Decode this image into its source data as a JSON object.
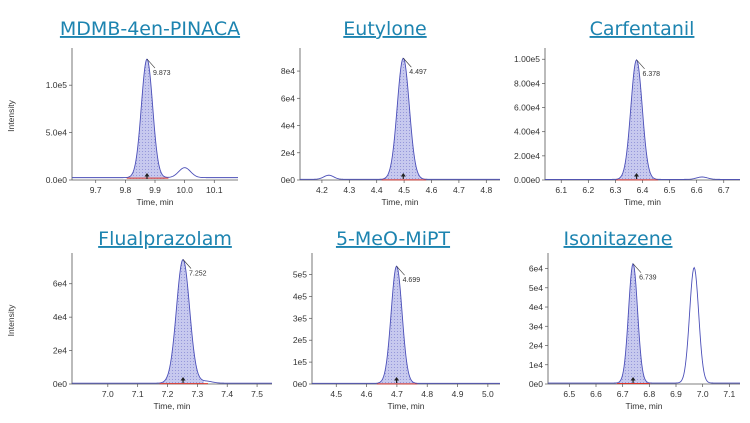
{
  "chart_data": [
    {
      "type": "line",
      "title": "MDMB-4en-PINACA",
      "xlabel": "Time, min",
      "ylabel": "Intensity",
      "xlim": [
        9.62,
        10.18
      ],
      "ylim": [
        0,
        135000
      ],
      "xticks": [
        "9.7",
        "9.8",
        "9.9",
        "10.0",
        "10.1"
      ],
      "xtick_values": [
        9.7,
        9.8,
        9.9,
        10.0,
        10.1
      ],
      "yticks": [
        "0.0e0",
        "5.0e4",
        "1.0e5"
      ],
      "ytick_values": [
        0,
        50000,
        100000
      ],
      "peak_label": "9.873",
      "peak": {
        "rt": 9.873,
        "height": 125000,
        "sigma": 0.019
      },
      "baseline": 2500,
      "secondary_peaks": [
        {
          "rt": 10.0,
          "height": 10500,
          "sigma": 0.02
        }
      ]
    },
    {
      "type": "line",
      "title": "Eutylone",
      "xlabel": "Time, min",
      "ylabel": "",
      "xlim": [
        4.12,
        4.85
      ],
      "ylim": [
        0,
        94000
      ],
      "xticks": [
        "4.2",
        "4.3",
        "4.4",
        "4.5",
        "4.6",
        "4.7",
        "4.8"
      ],
      "xtick_values": [
        4.2,
        4.3,
        4.4,
        4.5,
        4.6,
        4.7,
        4.8
      ],
      "yticks": [
        "0e0",
        "2e4",
        "4e4",
        "6e4",
        "8e4"
      ],
      "ytick_values": [
        0,
        20000,
        40000,
        60000,
        80000
      ],
      "peak_label": "4.497",
      "peak": {
        "rt": 4.497,
        "height": 89000,
        "sigma": 0.022
      },
      "baseline": 500,
      "secondary_peaks": [
        {
          "rt": 4.225,
          "height": 3000,
          "sigma": 0.018
        }
      ]
    },
    {
      "type": "line",
      "title": "Carfentanil",
      "xlabel": "Time, min",
      "ylabel": "",
      "xlim": [
        6.04,
        6.76
      ],
      "ylim": [
        0,
        106000
      ],
      "xticks": [
        "6.1",
        "6.2",
        "6.3",
        "6.4",
        "6.5",
        "6.6",
        "6.7"
      ],
      "xtick_values": [
        6.1,
        6.2,
        6.3,
        6.4,
        6.5,
        6.6,
        6.7
      ],
      "yticks": [
        "0.00e0",
        "2.00e4",
        "4.00e4",
        "6.00e4",
        "8.00e4",
        "1.00e5"
      ],
      "ytick_values": [
        0,
        20000,
        40000,
        60000,
        80000,
        100000
      ],
      "peak_label": "6.378",
      "peak": {
        "rt": 6.378,
        "height": 99000,
        "sigma": 0.021
      },
      "baseline": 500,
      "secondary_peaks": [
        {
          "rt": 6.62,
          "height": 2000,
          "sigma": 0.02
        }
      ]
    },
    {
      "type": "line",
      "title": "Flualprazolam",
      "xlabel": "Time, min",
      "ylabel": "Intensity",
      "xlim": [
        6.88,
        7.55
      ],
      "ylim": [
        0,
        76000
      ],
      "xticks": [
        "7.0",
        "7.1",
        "7.2",
        "7.3",
        "7.4",
        "7.5"
      ],
      "xtick_values": [
        7.0,
        7.1,
        7.2,
        7.3,
        7.4,
        7.5
      ],
      "yticks": [
        "0e0",
        "2e4",
        "4e4",
        "6e4"
      ],
      "ytick_values": [
        0,
        20000,
        40000,
        60000
      ],
      "peak_label": "7.252",
      "peak": {
        "rt": 7.252,
        "height": 74000,
        "sigma": 0.022
      },
      "baseline": 500,
      "secondary_peaks": [
        {
          "rt": 7.33,
          "height": 1200,
          "sigma": 0.02
        }
      ]
    },
    {
      "type": "line",
      "title": "5-MeO-MiPT",
      "xlabel": "Time, min",
      "ylabel": "",
      "xlim": [
        4.42,
        5.04
      ],
      "ylim": [
        0,
        580000
      ],
      "xticks": [
        "4.5",
        "4.6",
        "4.7",
        "4.8",
        "4.9",
        "5.0"
      ],
      "xtick_values": [
        4.5,
        4.6,
        4.7,
        4.8,
        4.9,
        5.0
      ],
      "yticks": [
        "0e0",
        "1e5",
        "2e5",
        "3e5",
        "4e5",
        "5e5"
      ],
      "ytick_values": [
        0,
        100000,
        200000,
        300000,
        400000,
        500000
      ],
      "peak_label": "4.699",
      "peak": {
        "rt": 4.699,
        "height": 535000,
        "sigma": 0.018
      },
      "baseline": 3000,
      "secondary_peaks": []
    },
    {
      "type": "line",
      "title": "Isonitazene",
      "xlabel": "Time, min",
      "ylabel": "",
      "xlim": [
        6.42,
        7.14
      ],
      "ylim": [
        0,
        66000
      ],
      "xticks": [
        "6.5",
        "6.6",
        "6.7",
        "6.8",
        "6.9",
        "7.0",
        "7.1"
      ],
      "xtick_values": [
        6.5,
        6.6,
        6.7,
        6.8,
        6.9,
        7.0,
        7.1
      ],
      "yticks": [
        "0e0",
        "1e4",
        "2e4",
        "3e4",
        "4e4",
        "5e4",
        "6e4"
      ],
      "ytick_values": [
        0,
        10000,
        20000,
        30000,
        40000,
        50000,
        60000
      ],
      "peak_label": "6.739",
      "peak": {
        "rt": 6.739,
        "height": 62000,
        "sigma": 0.017
      },
      "baseline": 500,
      "secondary_peaks": [
        {
          "rt": 6.968,
          "height": 60000,
          "sigma": 0.017
        }
      ]
    }
  ],
  "colors": {
    "title": "#1d84b0",
    "trace": "#4b4fb8",
    "fill": "#c7c9ee",
    "hatch": "#8a8dd6",
    "baseline": "#d9352a",
    "axis": "#555555"
  }
}
